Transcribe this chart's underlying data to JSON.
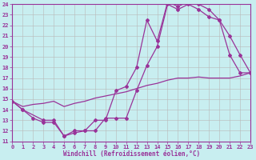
{
  "xlabel": "Windchill (Refroidissement éolien,°C)",
  "bg_color": "#c8eef0",
  "grid_color": "#b8b8b8",
  "line_color": "#993399",
  "spine_color": "#993399",
  "xlim": [
    0,
    23
  ],
  "ylim": [
    11,
    24
  ],
  "xticks": [
    0,
    1,
    2,
    3,
    4,
    5,
    6,
    7,
    8,
    9,
    10,
    11,
    12,
    13,
    14,
    15,
    16,
    17,
    18,
    19,
    20,
    21,
    22,
    23
  ],
  "yticks": [
    11,
    12,
    13,
    14,
    15,
    16,
    17,
    18,
    19,
    20,
    21,
    22,
    23,
    24
  ],
  "line1_x": [
    0,
    1,
    2,
    3,
    4,
    5,
    6,
    7,
    8,
    9,
    10,
    11,
    12,
    13,
    14,
    15,
    16,
    17,
    18,
    19,
    20,
    21,
    22,
    23
  ],
  "line1_y": [
    14.8,
    14.0,
    13.2,
    12.8,
    12.8,
    11.5,
    11.8,
    12.0,
    12.0,
    13.2,
    13.2,
    13.2,
    15.8,
    18.2,
    20.0,
    24.0,
    23.5,
    24.0,
    23.5,
    22.8,
    22.5,
    21.0,
    19.2,
    17.5
  ],
  "line2_x": [
    0,
    1,
    3,
    4,
    5,
    6,
    7,
    8,
    9,
    10,
    11,
    12,
    13,
    14,
    15,
    16,
    17,
    18,
    19,
    20,
    21,
    22,
    23
  ],
  "line2_y": [
    14.8,
    14.0,
    13.0,
    13.0,
    11.5,
    12.0,
    12.0,
    13.0,
    13.0,
    15.8,
    16.2,
    18.0,
    22.5,
    20.5,
    24.2,
    23.8,
    24.2,
    24.0,
    23.5,
    22.5,
    19.2,
    17.5,
    17.5
  ],
  "line3_x": [
    0,
    1,
    2,
    3,
    4,
    5,
    6,
    7,
    8,
    9,
    10,
    11,
    12,
    13,
    14,
    15,
    16,
    17,
    18,
    19,
    20,
    21,
    22,
    23
  ],
  "line3_y": [
    14.8,
    14.3,
    14.5,
    14.6,
    14.8,
    14.3,
    14.6,
    14.8,
    15.1,
    15.3,
    15.5,
    15.7,
    16.0,
    16.3,
    16.5,
    16.8,
    17.0,
    17.0,
    17.1,
    17.0,
    17.0,
    17.0,
    17.2,
    17.5
  ],
  "tick_fontsize": 5.0,
  "label_fontsize": 5.5
}
